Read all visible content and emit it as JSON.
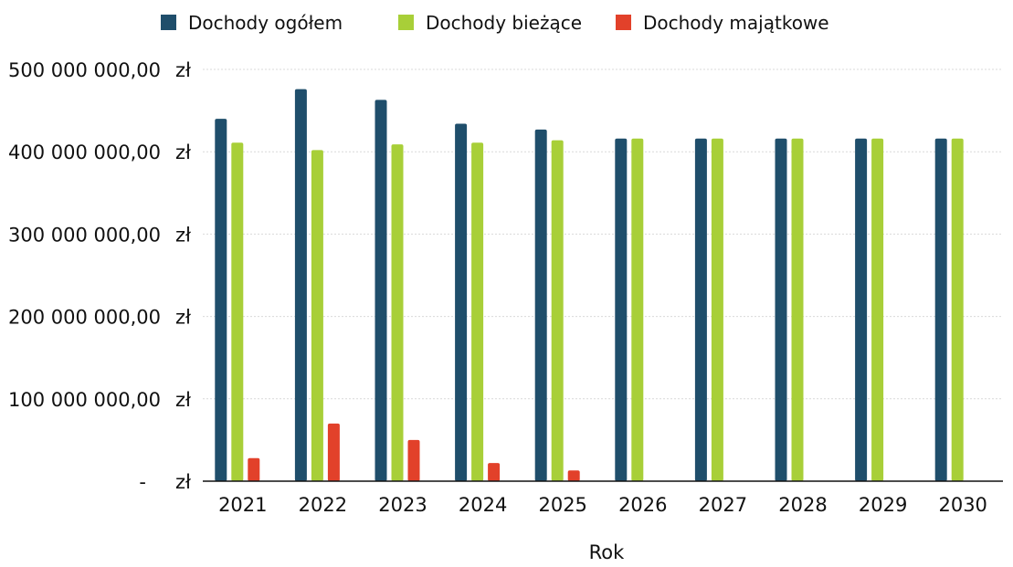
{
  "chart_data": {
    "type": "bar",
    "categories": [
      "2021",
      "2022",
      "2023",
      "2024",
      "2025",
      "2026",
      "2027",
      "2028",
      "2029",
      "2030"
    ],
    "series": [
      {
        "name": "Dochody ogółem",
        "color": "#1f4e6b",
        "values": [
          440000000,
          476000000,
          463000000,
          434000000,
          427000000,
          416000000,
          416000000,
          416000000,
          416000000,
          416000000
        ]
      },
      {
        "name": "Dochody bieżące",
        "color": "#a8cf38",
        "values": [
          411000000,
          402000000,
          409000000,
          411000000,
          414000000,
          416000000,
          416000000,
          416000000,
          416000000,
          416000000
        ]
      },
      {
        "name": "Dochody majątkowe",
        "color": "#e2412a",
        "values": [
          28000000,
          70000000,
          50000000,
          22000000,
          13000000,
          0,
          0,
          0,
          0,
          0
        ]
      }
    ],
    "y_ticks": [
      {
        "value": 0,
        "label": "-",
        "unit": "zł"
      },
      {
        "value": 100000000,
        "label": "100 000 000,00",
        "unit": "zł"
      },
      {
        "value": 200000000,
        "label": "200 000 000,00",
        "unit": "zł"
      },
      {
        "value": 300000000,
        "label": "300 000 000,00",
        "unit": "zł"
      },
      {
        "value": 400000000,
        "label": "400 000 000,00",
        "unit": "zł"
      },
      {
        "value": 500000000,
        "label": "500 000 000,00",
        "unit": "zł"
      }
    ],
    "ylim": [
      0,
      500000000
    ],
    "title": "",
    "xlabel": "Rok",
    "ylabel": "",
    "legend": "top",
    "grid": true
  }
}
